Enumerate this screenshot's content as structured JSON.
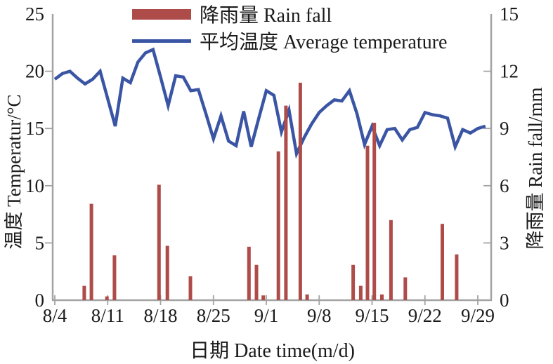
{
  "legend": {
    "rainfall": "降雨量  Rain fall",
    "temperature": "平均温度  Average temperature"
  },
  "chart_data": {
    "type": "bar+line combo",
    "title": "",
    "grid": "off",
    "legend_position": "top-center, no border",
    "colors": {
      "bar": "#ae4c4a",
      "line": "#3a55a4",
      "axis": "#a3a3a3",
      "text": "#1a1a1a"
    },
    "x_axis": {
      "label": "日期  Date time(m/d)",
      "tick_labels": [
        "8/4",
        "8/11",
        "8/18",
        "8/25",
        "9/1",
        "9/8",
        "9/15",
        "9/22",
        "9/29"
      ],
      "tick_day_offsets": [
        0,
        7,
        14,
        21,
        28,
        35,
        42,
        49,
        56
      ],
      "days_shown": 57
    },
    "left_axis": {
      "label": "温度  Temperatur/°C",
      "ticks": [
        0,
        5,
        10,
        15,
        20,
        25
      ],
      "range": [
        0,
        25
      ]
    },
    "right_axis": {
      "label": "降雨量  Rain fall/mm",
      "ticks": [
        0,
        3,
        6,
        9,
        12,
        15
      ],
      "range": [
        0,
        15
      ]
    },
    "temperature_series": {
      "name": "平均温度 Average temperature",
      "unit": "°C",
      "dates": [
        "8/4",
        "8/5",
        "8/6",
        "8/7",
        "8/8",
        "8/9",
        "8/10",
        "8/11",
        "8/12",
        "8/13",
        "8/14",
        "8/15",
        "8/16",
        "8/17",
        "8/18",
        "8/19",
        "8/20",
        "8/21",
        "8/22",
        "8/23",
        "8/24",
        "8/25",
        "8/26",
        "8/27",
        "8/28",
        "8/29",
        "8/30",
        "8/31",
        "9/1",
        "9/2",
        "9/3",
        "9/4",
        "9/5",
        "9/6",
        "9/7",
        "9/8",
        "9/9",
        "9/10",
        "9/11",
        "9/12",
        "9/13",
        "9/14",
        "9/15",
        "9/16",
        "9/17",
        "9/18",
        "9/19",
        "9/20",
        "9/21",
        "9/22",
        "9/23",
        "9/24",
        "9/25",
        "9/26",
        "9/27",
        "9/28",
        "9/29",
        "9/30"
      ],
      "values": [
        19.3,
        19.8,
        20.0,
        19.4,
        18.9,
        19.3,
        20.0,
        17.6,
        15.2,
        19.4,
        19.0,
        20.8,
        21.6,
        21.9,
        19.5,
        17.0,
        19.6,
        19.5,
        18.3,
        18.4,
        16.3,
        14.1,
        16.1,
        13.9,
        13.5,
        16.5,
        13.4,
        15.9,
        18.3,
        17.9,
        14.7,
        16.6,
        12.8,
        14.2,
        15.4,
        16.4,
        17.0,
        17.5,
        17.4,
        18.3,
        16.3,
        13.6,
        15.2,
        13.5,
        14.9,
        15.0,
        14.0,
        14.9,
        15.1,
        16.4,
        16.2,
        16.1,
        15.9,
        13.4,
        14.9,
        14.6,
        15.0,
        15.2
      ]
    },
    "rainfall_series": {
      "name": "降雨量 Rain fall",
      "unit": "mm",
      "bars": [
        {
          "date": "8/8",
          "day_offset": 3.9,
          "mm": 0.75
        },
        {
          "date": "8/9",
          "day_offset": 4.85,
          "mm": 5.05
        },
        {
          "date": "8/11",
          "day_offset": 6.9,
          "mm": 0.2
        },
        {
          "date": "8/12",
          "day_offset": 7.9,
          "mm": 2.35
        },
        {
          "date": "8/18",
          "day_offset": 13.8,
          "mm": 6.05
        },
        {
          "date": "8/19",
          "day_offset": 14.9,
          "mm": 2.85
        },
        {
          "date": "8/22",
          "day_offset": 17.95,
          "mm": 1.25
        },
        {
          "date": "8/30",
          "day_offset": 25.7,
          "mm": 2.8
        },
        {
          "date": "8/31",
          "day_offset": 26.7,
          "mm": 1.85
        },
        {
          "date": "9/1",
          "day_offset": 27.6,
          "mm": 0.25
        },
        {
          "date": "9/3",
          "day_offset": 29.6,
          "mm": 7.8
        },
        {
          "date": "9/4",
          "day_offset": 30.6,
          "mm": 10.2
        },
        {
          "date": "9/6",
          "day_offset": 32.5,
          "mm": 11.4
        },
        {
          "date": "9/7",
          "day_offset": 33.4,
          "mm": 0.3
        },
        {
          "date": "9/13",
          "day_offset": 39.5,
          "mm": 1.85
        },
        {
          "date": "9/14",
          "day_offset": 40.5,
          "mm": 0.75
        },
        {
          "date": "9/15",
          "day_offset": 41.4,
          "mm": 8.1
        },
        {
          "date": "9/16",
          "day_offset": 42.3,
          "mm": 9.3
        },
        {
          "date": "9/17",
          "day_offset": 43.3,
          "mm": 0.3
        },
        {
          "date": "9/18",
          "day_offset": 44.5,
          "mm": 4.2
        },
        {
          "date": "9/20",
          "day_offset": 46.4,
          "mm": 1.2
        },
        {
          "date": "9/25",
          "day_offset": 51.3,
          "mm": 4.0
        },
        {
          "date": "9/26",
          "day_offset": 53.2,
          "mm": 2.4
        }
      ]
    }
  }
}
